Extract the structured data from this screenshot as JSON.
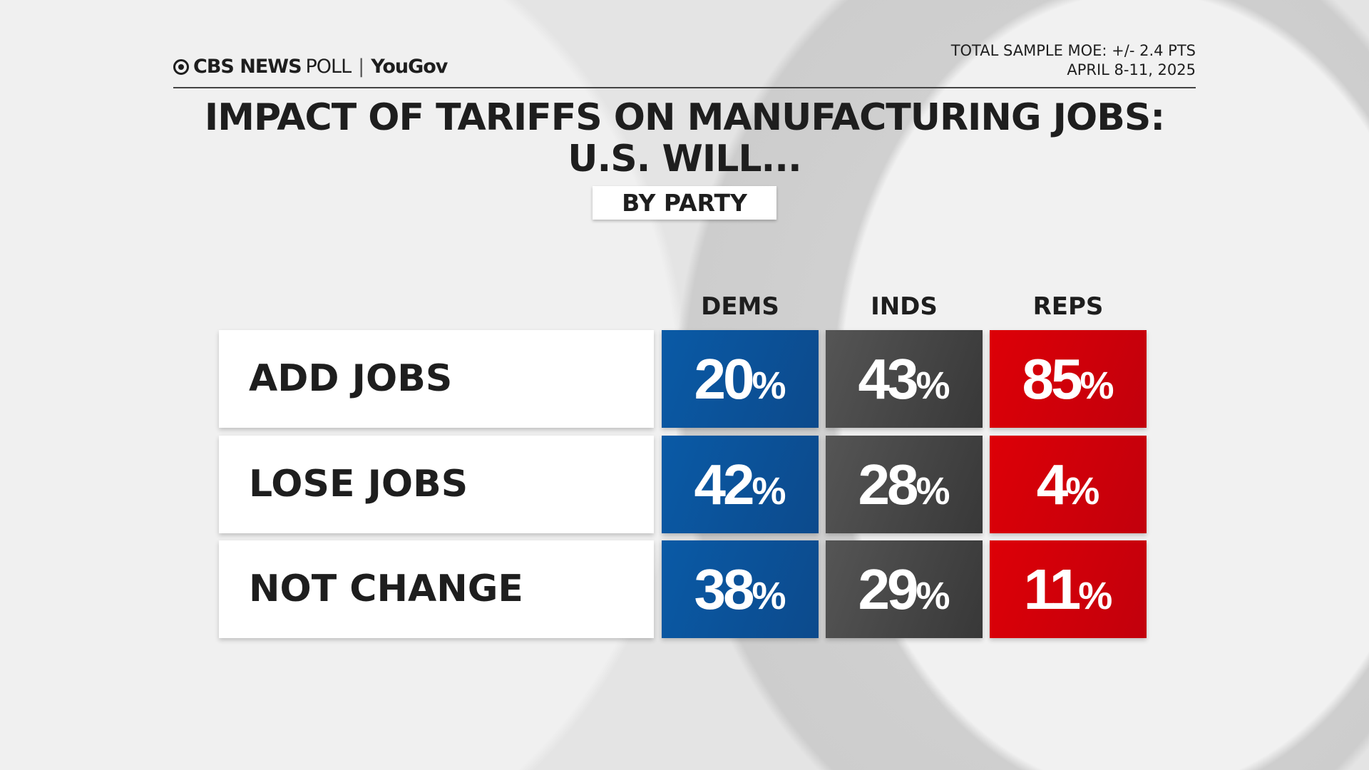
{
  "header": {
    "brand": "CBS NEWS",
    "brand_poll": "POLL",
    "partner": "YouGov",
    "moe": "TOTAL SAMPLE MOE: +/- 2.4 PTS",
    "dates": "APRIL 8-11, 2025"
  },
  "chart_data": {
    "type": "table",
    "title_line1": "IMPACT OF TARIFFS ON MANUFACTURING JOBS:",
    "title_line2": "U.S. WILL...",
    "subtitle": "BY PARTY",
    "columns": [
      "DEMS",
      "INDS",
      "REPS"
    ],
    "rows": [
      {
        "label": "ADD JOBS",
        "values": [
          20,
          43,
          85
        ]
      },
      {
        "label": "LOSE JOBS",
        "values": [
          42,
          28,
          4
        ]
      },
      {
        "label": "NOT CHANGE",
        "values": [
          38,
          29,
          11
        ]
      }
    ],
    "unit": "%",
    "colors": {
      "DEMS": "#0a5aa6",
      "INDS": "#4a4a4a",
      "REPS": "#d5000a"
    }
  }
}
